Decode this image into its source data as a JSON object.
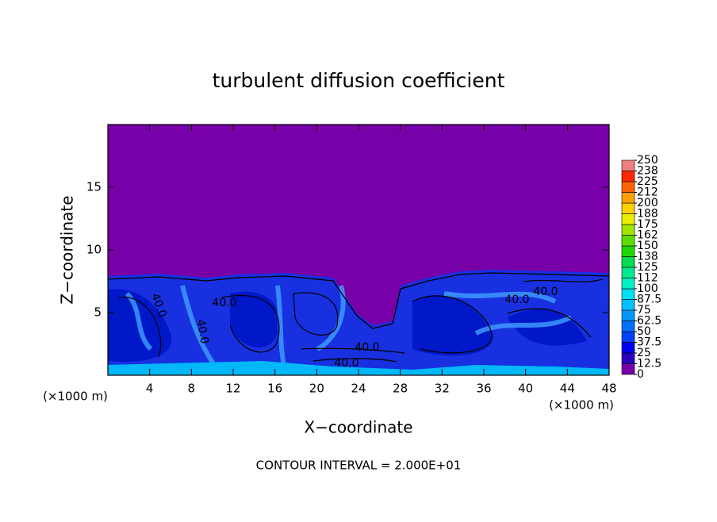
{
  "chart_data": {
    "type": "contour",
    "title": "turbulent diffusion coefficient",
    "x_label": "X−coordinate",
    "y_label": "Z−coordinate",
    "x_unit": "(×1000 m)",
    "footnote": "CONTOUR INTERVAL = 2.000E+01",
    "xlim": [
      0,
      48
    ],
    "ylim": [
      0,
      20
    ],
    "xticks": [
      4,
      8,
      12,
      16,
      20,
      24,
      28,
      32,
      36,
      40,
      44,
      48
    ],
    "yticks": [
      5,
      10,
      15
    ],
    "contour_labels": [
      "40.0",
      "40.0",
      "40.0",
      "40.0",
      "40.0",
      "40.0",
      "40.0"
    ],
    "colorbar": {
      "levels": [
        0,
        12.5,
        25,
        37.5,
        50,
        62.5,
        75,
        87.5,
        100,
        {
          "value": 112.5,
          "label": "112"
        },
        125,
        {
          "value": 137.5,
          "label": "138"
        },
        150,
        {
          "value": 162.5,
          "label": "162"
        },
        175,
        {
          "value": 187.5,
          "label": "188"
        },
        200,
        {
          "value": 212.5,
          "label": "212"
        },
        225,
        {
          "value": 237.5,
          "label": "238"
        },
        250
      ],
      "colors": [
        "#7800a8",
        "#2a00c0",
        "#0000f0",
        "#0040ff",
        "#0070ff",
        "#0098ff",
        "#00c0ff",
        "#00e0f0",
        "#00f0c0",
        "#00e890",
        "#00dc50",
        "#20d800",
        "#60dc00",
        "#a0e400",
        "#e8f000",
        "#ffd000",
        "#ffa000",
        "#ff6400",
        "#ff2800",
        "#f08080"
      ]
    }
  }
}
